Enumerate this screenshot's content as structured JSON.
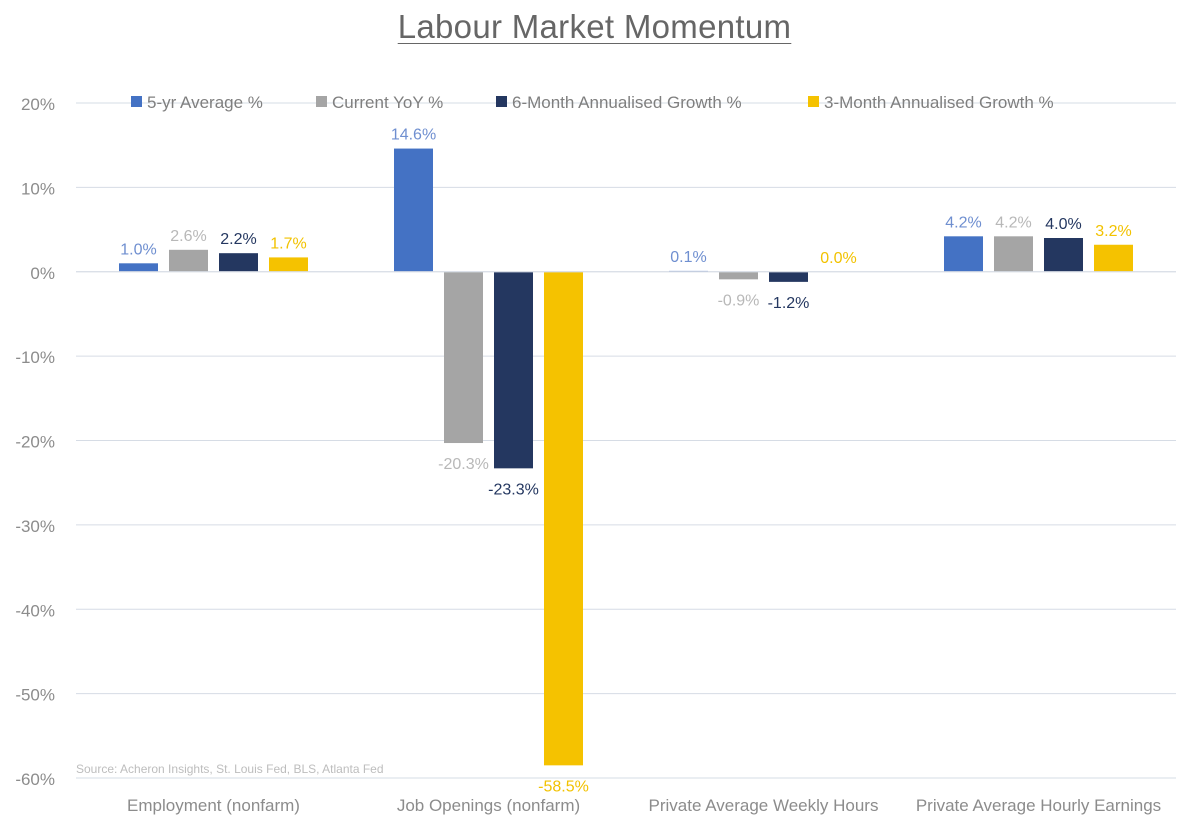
{
  "chart_data": {
    "type": "bar",
    "title": "Labour Market Momentum",
    "categories": [
      "Employment (nonfarm)",
      "Job Openings (nonfarm)",
      "Private Average Weekly Hours",
      "Private Average Hourly Earnings"
    ],
    "series": [
      {
        "name": "5-yr Average %",
        "color": "#4472C4",
        "values": [
          1.0,
          14.6,
          0.1,
          4.2
        ],
        "labels": [
          "1.0%",
          "14.6%",
          "0.1%",
          "4.2%"
        ]
      },
      {
        "name": "Current YoY %",
        "color": "#A5A5A5",
        "values": [
          2.6,
          -20.3,
          -0.9,
          4.2
        ],
        "labels": [
          "2.6%",
          "-20.3%",
          "-0.9%",
          "4.2%"
        ]
      },
      {
        "name": "6-Month Annualised Growth %",
        "color": "#243760",
        "values": [
          2.2,
          -23.3,
          -1.2,
          4.0
        ],
        "labels": [
          "2.2%",
          "-23.3%",
          "-1.2%",
          "4.0%"
        ]
      },
      {
        "name": "3-Month Annualised Growth %",
        "color": "#F5C200",
        "values": [
          1.7,
          -58.5,
          0.0,
          3.2
        ],
        "labels": [
          "1.7%",
          "-58.5%",
          "0.0%",
          "3.2%"
        ]
      }
    ],
    "y_ticks": [
      20,
      10,
      0,
      -10,
      -20,
      -30,
      -40,
      -50,
      -60
    ],
    "y_tick_labels": [
      "20%",
      "10%",
      "0%",
      "-10%",
      "-20%",
      "-30%",
      "-40%",
      "-50%",
      "-60%"
    ],
    "ylim": [
      -60,
      20
    ],
    "xlabel": "",
    "ylabel": "",
    "grid": true,
    "legend_position": "top",
    "source_note": "Source: Acheron Insights, St. Louis Fed, BLS, Atlanta Fed"
  }
}
